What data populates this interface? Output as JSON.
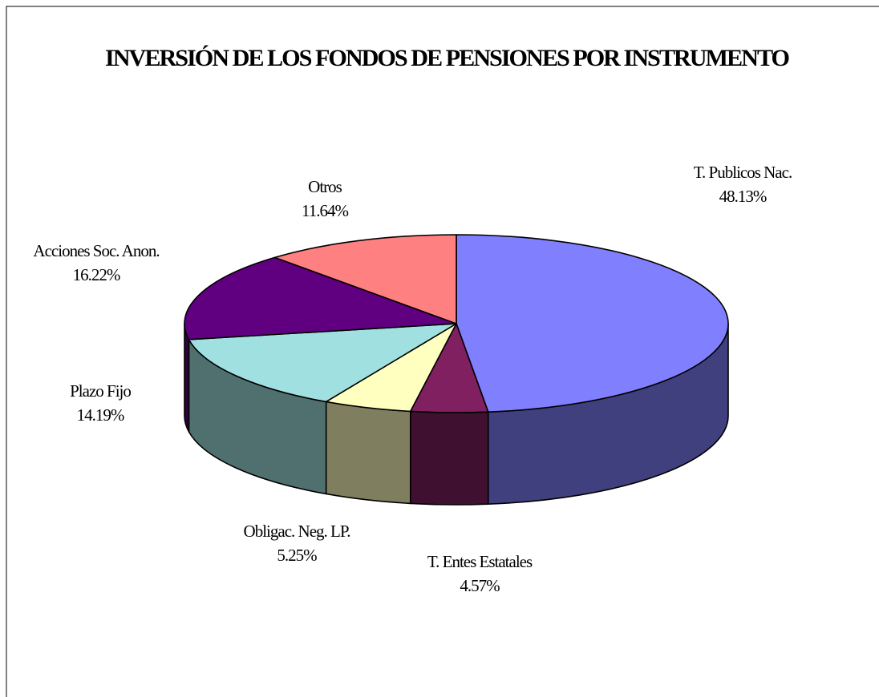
{
  "chart_data": {
    "type": "pie",
    "title": "INVERSIÓN DE LOS FONDOS DE PENSIONES POR INSTRUMENTO",
    "categories": [
      "T. Publicos Nac.",
      "T. Entes Estatales",
      "Obligac. Neg. LP.",
      "Plazo Fijo",
      "Acciones Soc. Anon.",
      "Otros"
    ],
    "values": [
      48.13,
      4.57,
      5.25,
      14.19,
      16.22,
      11.64
    ],
    "value_labels": [
      "48.13%",
      "4.57%",
      "5.25%",
      "14.19%",
      "16.22%",
      "11.64%"
    ],
    "colors": [
      "#8080ff",
      "#802060",
      "#ffffc0",
      "#a0e0e0",
      "#600080",
      "#ff8080"
    ],
    "three_d": true
  }
}
